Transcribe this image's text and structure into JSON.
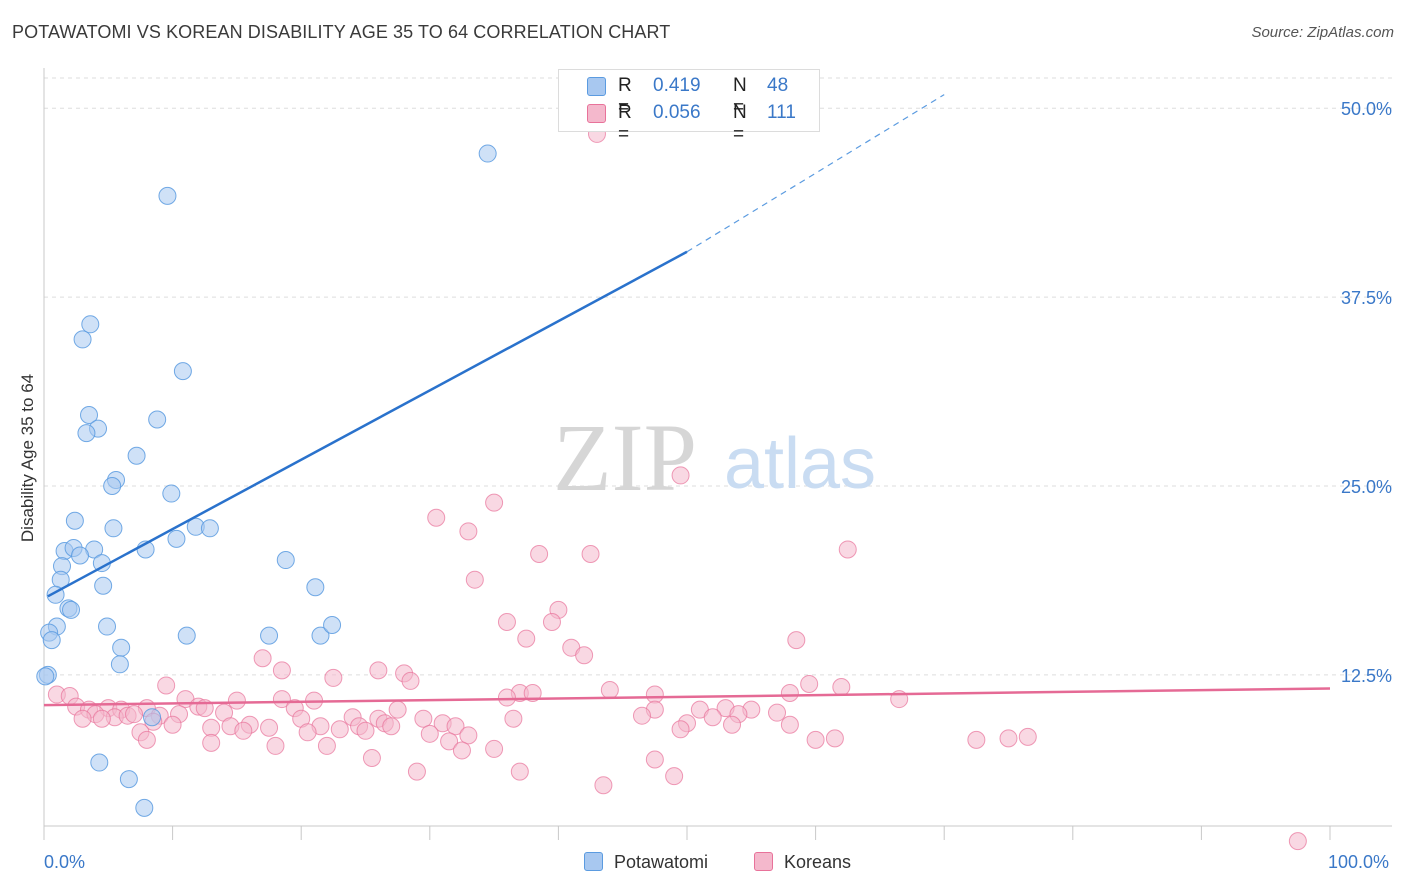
{
  "header": {
    "title": "POTAWATOMI VS KOREAN DISABILITY AGE 35 TO 64 CORRELATION CHART",
    "source": "Source: ZipAtlas.com"
  },
  "watermark": {
    "zip": "ZIP",
    "atlas": "atlas"
  },
  "legend": {
    "series1": {
      "r_label": "R =",
      "r_value": "0.419",
      "n_label": "N =",
      "n_value": "48",
      "color": "#a8c8f0"
    },
    "series2": {
      "r_label": "R =",
      "r_value": "0.056",
      "n_label": "N =",
      "n_value": "111",
      "color": "#f4b8cc"
    }
  },
  "bottom_legend": {
    "series1": "Potawatomi",
    "series2": "Koreans"
  },
  "x_axis": {
    "min_label": "0.0%",
    "max_label": "100.0%"
  },
  "chart_data": {
    "type": "scatter",
    "title": "POTAWATOMI VS KOREAN DISABILITY AGE 35 TO 64 CORRELATION CHART",
    "xlabel": "",
    "ylabel": "Disability Age 35 to 64",
    "xlim": [
      0,
      100
    ],
    "ylim": [
      2.5,
      52
    ],
    "y_ticks": [
      {
        "value": 12.5,
        "label": "12.5%"
      },
      {
        "value": 25.0,
        "label": "25.0%"
      },
      {
        "value": 37.5,
        "label": "37.5%"
      },
      {
        "value": 50.0,
        "label": "50.0%"
      }
    ],
    "grid": true,
    "series": [
      {
        "name": "Potawatomi",
        "color": "#5b9be0",
        "fill": "#a8c8f0",
        "r": 0.419,
        "n": 48,
        "trend": {
          "x0": 0.3,
          "y0": 17.7,
          "x1": 50,
          "y1": 40.5,
          "dashed_to_x": 70,
          "dashed_to_y": 50.9
        },
        "points": [
          [
            34.5,
            47.0
          ],
          [
            9.6,
            44.2
          ],
          [
            3.6,
            35.7
          ],
          [
            3.0,
            34.7
          ],
          [
            10.8,
            32.6
          ],
          [
            3.5,
            29.7
          ],
          [
            8.8,
            29.4
          ],
          [
            4.2,
            28.8
          ],
          [
            3.3,
            28.5
          ],
          [
            7.2,
            27.0
          ],
          [
            5.6,
            25.4
          ],
          [
            5.3,
            25.0
          ],
          [
            9.9,
            24.5
          ],
          [
            2.4,
            22.7
          ],
          [
            5.4,
            22.2
          ],
          [
            11.8,
            22.3
          ],
          [
            12.9,
            22.2
          ],
          [
            10.3,
            21.5
          ],
          [
            1.6,
            20.7
          ],
          [
            2.3,
            20.9
          ],
          [
            3.9,
            20.8
          ],
          [
            7.9,
            20.8
          ],
          [
            2.8,
            20.4
          ],
          [
            1.4,
            19.7
          ],
          [
            4.5,
            19.9
          ],
          [
            18.8,
            20.1
          ],
          [
            1.3,
            18.8
          ],
          [
            4.6,
            18.4
          ],
          [
            21.1,
            18.3
          ],
          [
            0.9,
            17.8
          ],
          [
            1.9,
            16.9
          ],
          [
            2.1,
            16.8
          ],
          [
            1.0,
            15.7
          ],
          [
            0.4,
            15.3
          ],
          [
            4.9,
            15.7
          ],
          [
            11.1,
            15.1
          ],
          [
            17.5,
            15.1
          ],
          [
            21.5,
            15.1
          ],
          [
            22.4,
            15.8
          ],
          [
            0.6,
            14.8
          ],
          [
            6.0,
            14.3
          ],
          [
            5.9,
            13.2
          ],
          [
            0.3,
            12.5
          ],
          [
            8.4,
            9.7
          ],
          [
            4.3,
            6.7
          ],
          [
            6.6,
            5.6
          ],
          [
            7.8,
            3.7
          ],
          [
            0.1,
            12.4
          ]
        ]
      },
      {
        "name": "Koreans",
        "color": "#e8729a",
        "fill": "#f4b8cc",
        "r": 0.056,
        "n": 111,
        "trend": {
          "x0": 0,
          "y0": 10.5,
          "x1": 100,
          "y1": 11.6
        },
        "points": [
          [
            43.0,
            48.3
          ],
          [
            49.5,
            25.7
          ],
          [
            35.0,
            23.9
          ],
          [
            30.5,
            22.9
          ],
          [
            33.0,
            22.0
          ],
          [
            62.5,
            20.8
          ],
          [
            38.5,
            20.5
          ],
          [
            42.5,
            20.5
          ],
          [
            33.5,
            18.8
          ],
          [
            40.0,
            16.8
          ],
          [
            36.0,
            16.0
          ],
          [
            39.5,
            16.0
          ],
          [
            37.5,
            14.9
          ],
          [
            58.5,
            14.8
          ],
          [
            41.0,
            14.3
          ],
          [
            42.0,
            13.8
          ],
          [
            17.0,
            13.6
          ],
          [
            18.5,
            12.8
          ],
          [
            26.0,
            12.8
          ],
          [
            28.0,
            12.6
          ],
          [
            22.5,
            12.3
          ],
          [
            28.5,
            12.1
          ],
          [
            9.5,
            11.8
          ],
          [
            59.5,
            11.9
          ],
          [
            62.0,
            11.7
          ],
          [
            1.0,
            11.2
          ],
          [
            2.0,
            11.1
          ],
          [
            37.0,
            11.3
          ],
          [
            38.0,
            11.3
          ],
          [
            47.5,
            11.2
          ],
          [
            36.0,
            11.0
          ],
          [
            58.0,
            11.3
          ],
          [
            66.5,
            10.9
          ],
          [
            15.0,
            10.8
          ],
          [
            18.5,
            10.9
          ],
          [
            21.0,
            10.8
          ],
          [
            11.0,
            10.9
          ],
          [
            12.0,
            10.4
          ],
          [
            2.5,
            10.4
          ],
          [
            3.5,
            10.2
          ],
          [
            5.0,
            10.3
          ],
          [
            6.0,
            10.2
          ],
          [
            8.0,
            10.3
          ],
          [
            12.5,
            10.3
          ],
          [
            19.5,
            10.3
          ],
          [
            27.5,
            10.2
          ],
          [
            47.5,
            10.2
          ],
          [
            51.0,
            10.2
          ],
          [
            53.0,
            10.3
          ],
          [
            55.0,
            10.2
          ],
          [
            57.0,
            10.0
          ],
          [
            14.0,
            10.0
          ],
          [
            4.0,
            9.9
          ],
          [
            5.5,
            9.7
          ],
          [
            6.5,
            9.8
          ],
          [
            7.0,
            9.9
          ],
          [
            9.0,
            9.8
          ],
          [
            10.5,
            9.9
          ],
          [
            20.0,
            9.6
          ],
          [
            24.0,
            9.7
          ],
          [
            26.0,
            9.6
          ],
          [
            29.5,
            9.6
          ],
          [
            36.5,
            9.6
          ],
          [
            46.5,
            9.8
          ],
          [
            52.0,
            9.7
          ],
          [
            54.0,
            9.9
          ],
          [
            3.0,
            9.6
          ],
          [
            4.5,
            9.6
          ],
          [
            8.5,
            9.4
          ],
          [
            10.0,
            9.2
          ],
          [
            13.0,
            9.0
          ],
          [
            14.5,
            9.1
          ],
          [
            16.0,
            9.2
          ],
          [
            17.5,
            9.0
          ],
          [
            21.5,
            9.1
          ],
          [
            23.0,
            8.9
          ],
          [
            24.5,
            9.1
          ],
          [
            26.5,
            9.3
          ],
          [
            27.0,
            9.1
          ],
          [
            31.0,
            9.3
          ],
          [
            32.0,
            9.1
          ],
          [
            50.0,
            9.3
          ],
          [
            53.5,
            9.2
          ],
          [
            58.0,
            9.2
          ],
          [
            7.5,
            8.7
          ],
          [
            15.5,
            8.8
          ],
          [
            20.5,
            8.7
          ],
          [
            25.0,
            8.8
          ],
          [
            30.0,
            8.6
          ],
          [
            33.0,
            8.5
          ],
          [
            49.5,
            8.9
          ],
          [
            8.0,
            8.2
          ],
          [
            13.0,
            8.0
          ],
          [
            18.0,
            7.8
          ],
          [
            22.0,
            7.8
          ],
          [
            31.5,
            8.1
          ],
          [
            35.0,
            7.6
          ],
          [
            60.0,
            8.2
          ],
          [
            61.5,
            8.3
          ],
          [
            72.5,
            8.2
          ],
          [
            75.0,
            8.3
          ],
          [
            76.5,
            8.4
          ],
          [
            32.5,
            7.5
          ],
          [
            25.5,
            7.0
          ],
          [
            47.5,
            6.9
          ],
          [
            29.0,
            6.1
          ],
          [
            37.0,
            6.1
          ],
          [
            43.5,
            5.2
          ],
          [
            49.0,
            5.8
          ],
          [
            97.5,
            1.5
          ],
          [
            44.0,
            11.5
          ]
        ]
      }
    ]
  }
}
